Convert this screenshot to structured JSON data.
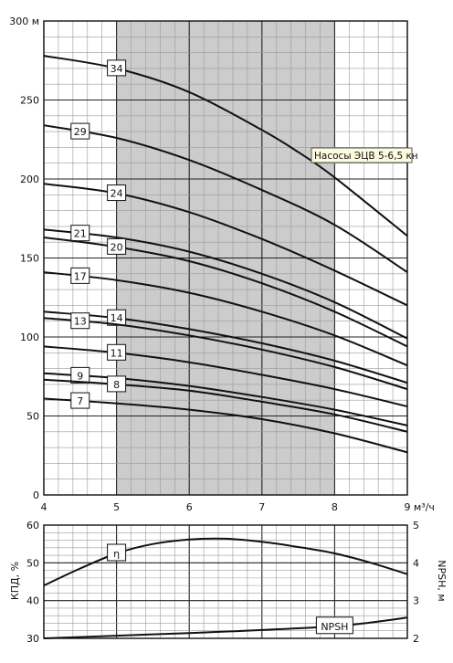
{
  "chart_data": [
    {
      "type": "line",
      "title": "",
      "xlabel": "м³/ч",
      "ylabel": "м",
      "xlim": [
        4,
        9
      ],
      "ylim": [
        0,
        300
      ],
      "grid": true,
      "x_ticks": [
        4,
        5,
        6,
        7,
        8,
        9
      ],
      "x_tick_labels": [
        "4",
        "5",
        "6",
        "7",
        "8",
        "9"
      ],
      "y_ticks": [
        0,
        50,
        100,
        150,
        200,
        250,
        300
      ],
      "y_tick_labels": [
        "0",
        "50",
        "100",
        "150",
        "200",
        "250",
        "300 м"
      ],
      "x_unit_label": "м³/ч",
      "working_range": [
        5,
        8
      ],
      "annotation": "Насосы ЭЦВ 5-6,5 кн",
      "series": [
        {
          "name": "34",
          "label_x": 5.0,
          "x": [
            4,
            5,
            6,
            7,
            7.5,
            8,
            9
          ],
          "y": [
            278,
            270,
            255,
            231,
            217,
            201,
            164
          ]
        },
        {
          "name": "29",
          "label_x": 4.5,
          "x": [
            4,
            5,
            6,
            7,
            8,
            9
          ],
          "y": [
            234,
            226,
            212,
            193,
            171,
            141
          ]
        },
        {
          "name": "24",
          "label_x": 5.0,
          "x": [
            4,
            5,
            6,
            7,
            8,
            9
          ],
          "y": [
            197,
            191,
            179,
            162,
            142,
            120
          ]
        },
        {
          "name": "21",
          "label_x": 4.5,
          "x": [
            4,
            5,
            6,
            7,
            8,
            9
          ],
          "y": [
            168,
            163,
            154,
            140,
            122,
            99
          ]
        },
        {
          "name": "20",
          "label_x": 5.0,
          "x": [
            4,
            5,
            6,
            7,
            8,
            9
          ],
          "y": [
            163,
            157,
            148,
            134,
            116,
            94
          ]
        },
        {
          "name": "17",
          "label_x": 4.5,
          "x": [
            4,
            5,
            6,
            7,
            8,
            9
          ],
          "y": [
            141,
            136,
            128,
            116,
            101,
            82
          ]
        },
        {
          "name": "14",
          "label_x": 5.0,
          "x": [
            4,
            5,
            6,
            7,
            8,
            9
          ],
          "y": [
            116,
            112,
            105,
            96,
            85,
            71
          ]
        },
        {
          "name": "13",
          "label_x": 4.5,
          "x": [
            4,
            5,
            6,
            7,
            8,
            9
          ],
          "y": [
            112,
            108,
            101,
            92,
            81,
            67
          ]
        },
        {
          "name": "11",
          "label_x": 5.0,
          "x": [
            4,
            5,
            6,
            7,
            8,
            9
          ],
          "y": [
            94,
            90,
            84,
            76,
            67,
            56
          ]
        },
        {
          "name": "9",
          "label_x": 4.5,
          "x": [
            4,
            5,
            6,
            7,
            8,
            9
          ],
          "y": [
            77,
            74,
            69,
            62,
            54,
            44
          ]
        },
        {
          "name": "8",
          "label_x": 5.0,
          "x": [
            4,
            5,
            6,
            7,
            8,
            9
          ],
          "y": [
            73,
            70,
            66,
            59,
            51,
            40
          ]
        },
        {
          "name": "7",
          "label_x": 4.5,
          "x": [
            4,
            5,
            6,
            7,
            8,
            9
          ],
          "y": [
            61,
            58,
            54,
            48,
            39,
            27
          ]
        }
      ]
    },
    {
      "type": "line",
      "title": "",
      "xlabel": "",
      "ylabel": "КПД, %",
      "y2label": "NPSH, м",
      "xlim": [
        4,
        9
      ],
      "ylim": [
        30,
        60
      ],
      "y2lim": [
        2,
        5
      ],
      "grid": true,
      "y_ticks": [
        30,
        40,
        50,
        60
      ],
      "y_tick_labels": [
        "30",
        "40",
        "50",
        "60"
      ],
      "y2_ticks": [
        2,
        3,
        4,
        5
      ],
      "y2_tick_labels": [
        "2",
        "3",
        "4",
        "5"
      ],
      "series": [
        {
          "name": "η",
          "axis": "left",
          "label_x": 5.0,
          "x": [
            4,
            4.5,
            5,
            5.5,
            6,
            6.5,
            7,
            7.5,
            8,
            8.5,
            9
          ],
          "y": [
            44,
            48.5,
            52.5,
            55,
            56.2,
            56.4,
            55.6,
            54.2,
            52.5,
            50,
            47
          ]
        },
        {
          "name": "NPSH",
          "axis": "right",
          "label_x": 8.0,
          "x": [
            4,
            5,
            6,
            7,
            8,
            8.5,
            9
          ],
          "y": [
            2.0,
            2.07,
            2.14,
            2.22,
            2.32,
            2.42,
            2.55
          ]
        }
      ]
    }
  ]
}
